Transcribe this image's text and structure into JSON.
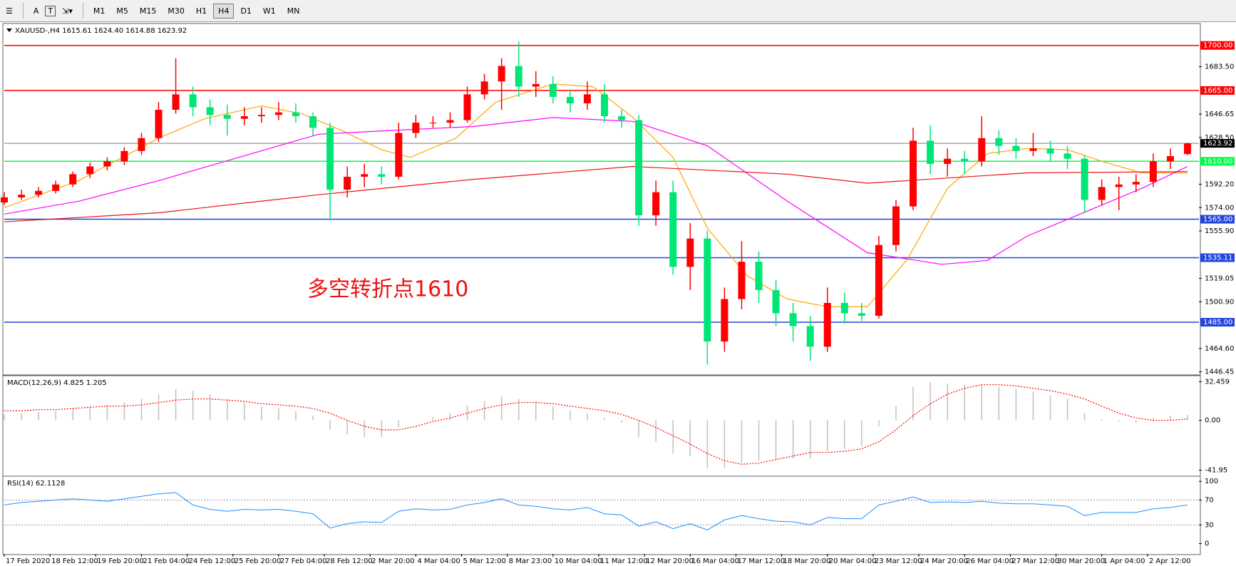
{
  "toolbar": {
    "tools": [
      "A"
    ],
    "timeframes": [
      "M1",
      "M5",
      "M15",
      "M30",
      "H1",
      "H4",
      "D1",
      "W1",
      "MN"
    ],
    "active": 5
  },
  "chart_data": [
    {
      "type": "candlestick",
      "title": "XAUUSD-,H4  1615.61 1624.40 1614.88 1623.92",
      "annotation": "多空转折点1610",
      "up_color": "#ff0000",
      "down_color": "#00e676",
      "xlim": [
        0,
        209
      ],
      "ylim": [
        1444.6,
        1715.9
      ],
      "yticks": [
        {
          "value": 1683.5,
          "label": "1683.50"
        },
        {
          "value": 1646.65,
          "label": "1646.65"
        },
        {
          "value": 1628.5,
          "label": "1628.50"
        },
        {
          "value": 1592.2,
          "label": "1592.20"
        },
        {
          "value": 1574,
          "label": "1574.00"
        },
        {
          "value": 1555.9,
          "label": "1555.90"
        },
        {
          "value": 1519.05,
          "label": "1519.05"
        },
        {
          "value": 1500.9,
          "label": "1500.90"
        },
        {
          "value": 1464.6,
          "label": "1464.60"
        },
        {
          "value": 1446.45,
          "label": "1446.45"
        }
      ],
      "levels": [
        {
          "value": 1700,
          "label": "1700.00",
          "color": "#ff0000"
        },
        {
          "value": 1665,
          "label": "1665.00",
          "color": "#ff0000"
        },
        {
          "value": 1623.92,
          "label": "1623.92",
          "color": "#a8a8a8",
          "label_bg": "#000000"
        },
        {
          "value": 1610,
          "label": "1610.00",
          "color": "#00ff44"
        },
        {
          "value": 1565,
          "label": "1565.00",
          "color": "#2244dd"
        },
        {
          "value": 1535.11,
          "label": "1535.11",
          "color": "#2244dd"
        },
        {
          "value": 1485,
          "label": "1485.00",
          "color": "#2244dd"
        }
      ],
      "x": [
        0,
        3,
        6,
        9,
        12,
        15,
        18,
        21,
        24,
        27,
        30,
        33,
        36,
        39,
        42,
        45,
        48,
        51,
        54,
        57,
        60,
        63,
        66,
        69,
        72,
        75,
        78,
        81,
        84,
        87,
        90,
        93,
        96,
        99,
        102,
        105,
        108,
        111,
        114,
        117,
        120,
        123,
        126,
        129,
        132,
        135,
        138,
        141,
        144,
        147,
        150,
        153,
        156,
        159,
        162,
        165,
        168,
        171,
        174,
        177,
        180,
        183,
        186,
        189,
        192,
        195,
        198,
        201,
        204,
        207
      ],
      "open": [
        1578,
        1582,
        1584,
        1587,
        1592,
        1600,
        1606,
        1610,
        1618,
        1628,
        1650,
        1662,
        1652,
        1646,
        1643,
        1645,
        1646,
        1648,
        1645,
        1636,
        1588,
        1598,
        1600,
        1598,
        1632,
        1640,
        1640,
        1642,
        1662,
        1672,
        1684,
        1668,
        1670,
        1660,
        1655,
        1662,
        1645,
        1642,
        1568,
        1586,
        1528,
        1550,
        1470,
        1503,
        1532,
        1510,
        1492,
        1482,
        1466,
        1500,
        1492,
        1490,
        1545,
        1575,
        1626,
        1608,
        1612,
        1610,
        1628,
        1622,
        1618,
        1620,
        1616,
        1612,
        1580,
        1590,
        1592,
        1594,
        1610,
        1615.61
      ],
      "high": [
        1586,
        1588,
        1590,
        1595,
        1602,
        1609,
        1613,
        1621,
        1632,
        1656,
        1690,
        1668,
        1658,
        1654,
        1652,
        1652,
        1656,
        1655,
        1648,
        1640,
        1606,
        1608,
        1606,
        1640,
        1646,
        1645,
        1648,
        1668,
        1678,
        1690,
        1703,
        1680,
        1676,
        1665,
        1672,
        1670,
        1650,
        1646,
        1595,
        1595,
        1562,
        1556,
        1512,
        1548,
        1540,
        1518,
        1500,
        1490,
        1512,
        1508,
        1500,
        1552,
        1580,
        1636,
        1638,
        1620,
        1618,
        1645,
        1634,
        1628,
        1632,
        1626,
        1622,
        1615,
        1596,
        1598,
        1600,
        1616,
        1620,
        1624.4
      ],
      "low": [
        1576,
        1580,
        1582,
        1585,
        1590,
        1597,
        1603,
        1607,
        1615,
        1625,
        1647,
        1645,
        1638,
        1630,
        1638,
        1640,
        1642,
        1640,
        1630,
        1564,
        1582,
        1590,
        1592,
        1596,
        1628,
        1636,
        1636,
        1640,
        1658,
        1650,
        1660,
        1660,
        1655,
        1648,
        1650,
        1640,
        1636,
        1560,
        1560,
        1522,
        1510,
        1452,
        1462,
        1495,
        1500,
        1482,
        1470,
        1455,
        1462,
        1484,
        1486,
        1488,
        1540,
        1572,
        1600,
        1598,
        1600,
        1606,
        1615,
        1612,
        1614,
        1610,
        1604,
        1570,
        1576,
        1572,
        1586,
        1590,
        1604,
        1614.88
      ],
      "close": [
        1582,
        1584,
        1587,
        1592,
        1600,
        1606,
        1610,
        1618,
        1628,
        1650,
        1662,
        1652,
        1646,
        1643,
        1645,
        1646,
        1648,
        1645,
        1636,
        1588,
        1598,
        1600,
        1598,
        1632,
        1640,
        1640,
        1642,
        1662,
        1672,
        1684,
        1668,
        1670,
        1660,
        1655,
        1662,
        1645,
        1642,
        1568,
        1586,
        1528,
        1550,
        1470,
        1503,
        1532,
        1510,
        1492,
        1482,
        1466,
        1500,
        1492,
        1490,
        1545,
        1575,
        1626,
        1608,
        1612,
        1610,
        1628,
        1622,
        1618,
        1620,
        1616,
        1612,
        1580,
        1590,
        1592,
        1594,
        1610,
        1614,
        1623.92
      ],
      "lines": [
        {
          "color": "#ffa500",
          "x": [
            0,
            13,
            27,
            35,
            45,
            52,
            59,
            66,
            71,
            79,
            86,
            96,
            103,
            110,
            117,
            123,
            130,
            137,
            144,
            151,
            158,
            165,
            172,
            179,
            186,
            192,
            199,
            207
          ],
          "values": [
            1574,
            1595,
            1628,
            1643,
            1653,
            1647,
            1634,
            1619,
            1613,
            1628,
            1656,
            1670,
            1668,
            1644,
            1613,
            1558,
            1521,
            1503,
            1497,
            1497,
            1534,
            1589,
            1616,
            1620,
            1619,
            1610,
            1601,
            1601
          ]
        },
        {
          "color": "#ff00ff",
          "x": [
            0,
            13,
            27,
            41,
            55,
            68,
            82,
            96,
            110,
            123,
            137,
            151,
            164,
            172,
            179,
            192,
            199,
            207
          ],
          "values": [
            1569,
            1579,
            1595,
            1613,
            1631,
            1634,
            1637,
            1644,
            1641,
            1622,
            1579,
            1539,
            1530,
            1533,
            1552,
            1576,
            1589,
            1606
          ]
        },
        {
          "color": "#ee1111",
          "x": [
            0,
            27,
            55,
            82,
            110,
            137,
            151,
            179,
            207
          ],
          "values": [
            1563,
            1570,
            1584,
            1596,
            1606,
            1600,
            1593,
            1601,
            1602
          ]
        }
      ]
    },
    {
      "type": "macd",
      "title": "MACD(12,26,9) 4.825 1.205",
      "xlim": [
        0,
        209
      ],
      "ylim": [
        -46.4,
        36.4
      ],
      "yticks": [
        32.459,
        {
          "value": 0,
          "label": "0.00"
        },
        -41.95
      ],
      "histogram_color": "#c0c0c0",
      "signal_color": "#ff0000",
      "x": [
        0,
        3,
        6,
        9,
        12,
        15,
        18,
        21,
        24,
        27,
        30,
        33,
        36,
        39,
        42,
        45,
        48,
        51,
        54,
        57,
        60,
        63,
        66,
        69,
        72,
        75,
        78,
        81,
        84,
        87,
        90,
        93,
        96,
        99,
        102,
        105,
        108,
        111,
        114,
        117,
        120,
        123,
        126,
        129,
        132,
        135,
        138,
        141,
        144,
        147,
        150,
        153,
        156,
        159,
        162,
        165,
        168,
        171,
        174,
        177,
        180,
        183,
        186,
        189,
        192,
        195,
        198,
        201,
        204,
        207
      ],
      "histogram": [
        5,
        6,
        7,
        8,
        10,
        12,
        13,
        15,
        18,
        22,
        26,
        25,
        22,
        18,
        15,
        12,
        10,
        8,
        4,
        -8,
        -12,
        -14,
        -14,
        -6,
        0,
        3,
        6,
        12,
        16,
        20,
        18,
        16,
        12,
        8,
        6,
        2,
        -2,
        -14,
        -18,
        -28,
        -30,
        -40,
        -40,
        -36,
        -34,
        -33,
        -32,
        -32,
        -26,
        -24,
        -22,
        -5,
        12,
        28,
        32,
        31,
        30,
        30,
        28,
        26,
        24,
        21,
        18,
        6,
        1,
        -1,
        -2,
        2,
        4,
        4.825
      ],
      "signal": [
        8,
        8,
        9,
        9,
        10,
        11,
        12,
        12,
        13,
        15,
        17,
        18,
        18,
        17,
        16,
        14,
        13,
        12,
        10,
        6,
        0,
        -5,
        -8,
        -8,
        -5,
        -1,
        2,
        6,
        10,
        13,
        15,
        15,
        14,
        12,
        10,
        8,
        5,
        0,
        -6,
        -13,
        -20,
        -28,
        -34,
        -37,
        -36,
        -33,
        -30,
        -27,
        -27,
        -26,
        -24,
        -18,
        -8,
        4,
        14,
        22,
        27,
        30,
        30,
        29,
        27,
        25,
        22,
        18,
        12,
        6,
        2,
        0,
        0,
        1.205
      ]
    },
    {
      "type": "line",
      "title": "RSI(14) 62.1128",
      "xlim": [
        0,
        209
      ],
      "ylim": [
        -16.5,
        106
      ],
      "color": "#1e90ff",
      "yticks": [
        100,
        70,
        30,
        0
      ],
      "levels": [
        {
          "value": 70,
          "color": "#999999"
        },
        {
          "value": 30,
          "color": "#999999"
        }
      ],
      "x": [
        0,
        3,
        6,
        9,
        12,
        15,
        18,
        21,
        24,
        27,
        30,
        33,
        36,
        39,
        42,
        45,
        48,
        51,
        54,
        57,
        60,
        63,
        66,
        69,
        72,
        75,
        78,
        81,
        84,
        87,
        90,
        93,
        96,
        99,
        102,
        105,
        108,
        111,
        114,
        117,
        120,
        123,
        126,
        129,
        132,
        135,
        138,
        141,
        144,
        147,
        150,
        153,
        156,
        159,
        162,
        165,
        168,
        171,
        174,
        177,
        180,
        183,
        186,
        189,
        192,
        195,
        198,
        201,
        204,
        207
      ],
      "values": [
        62,
        66,
        68,
        70,
        72,
        70,
        68,
        72,
        76,
        80,
        82,
        62,
        55,
        52,
        55,
        54,
        55,
        52,
        48,
        25,
        32,
        35,
        34,
        52,
        56,
        54,
        55,
        62,
        66,
        72,
        62,
        60,
        56,
        54,
        58,
        48,
        46,
        28,
        35,
        24,
        32,
        22,
        38,
        45,
        40,
        36,
        35,
        30,
        42,
        40,
        40,
        62,
        68,
        75,
        66,
        67,
        66,
        68,
        65,
        64,
        64,
        62,
        60,
        45,
        50,
        50,
        50,
        56,
        58,
        62.1128
      ],
      "xticks": [
        {
          "value": 0,
          "label": "17 Feb 2020"
        },
        {
          "value": 8,
          "label": "18 Feb 12:00"
        },
        {
          "value": 16,
          "label": "19 Feb 20:00"
        },
        {
          "value": 24,
          "label": "21 Feb 04:00"
        },
        {
          "value": 32,
          "label": "24 Feb 12:00"
        },
        {
          "value": 40,
          "label": "25 Feb 20:00"
        },
        {
          "value": 48,
          "label": "27 Feb 04:00"
        },
        {
          "value": 56,
          "label": "28 Feb 12:00"
        },
        {
          "value": 64,
          "label": "2 Mar 20:00"
        },
        {
          "value": 72,
          "label": "4 Mar 04:00"
        },
        {
          "value": 80,
          "label": "5 Mar 12:00"
        },
        {
          "value": 88,
          "label": "8 Mar 23:00"
        },
        {
          "value": 96,
          "label": "10 Mar 04:00"
        },
        {
          "value": 104,
          "label": "11 Mar 12:00"
        },
        {
          "value": 112,
          "label": "12 Mar 20:00"
        },
        {
          "value": 120,
          "label": "16 Mar 04:00"
        },
        {
          "value": 128,
          "label": "17 Mar 12:00"
        },
        {
          "value": 136,
          "label": "18 Mar 20:00"
        },
        {
          "value": 144,
          "label": "20 Mar 04:00"
        },
        {
          "value": 152,
          "label": "23 Mar 12:00"
        },
        {
          "value": 160,
          "label": "24 Mar 20:00"
        },
        {
          "value": 168,
          "label": "26 Mar 04:00"
        },
        {
          "value": 176,
          "label": "27 Mar 12:00"
        },
        {
          "value": 184,
          "label": "30 Mar 20:00"
        },
        {
          "value": 192,
          "label": "1 Apr 04:00"
        },
        {
          "value": 200,
          "label": "2 Apr 12:00"
        }
      ]
    }
  ]
}
